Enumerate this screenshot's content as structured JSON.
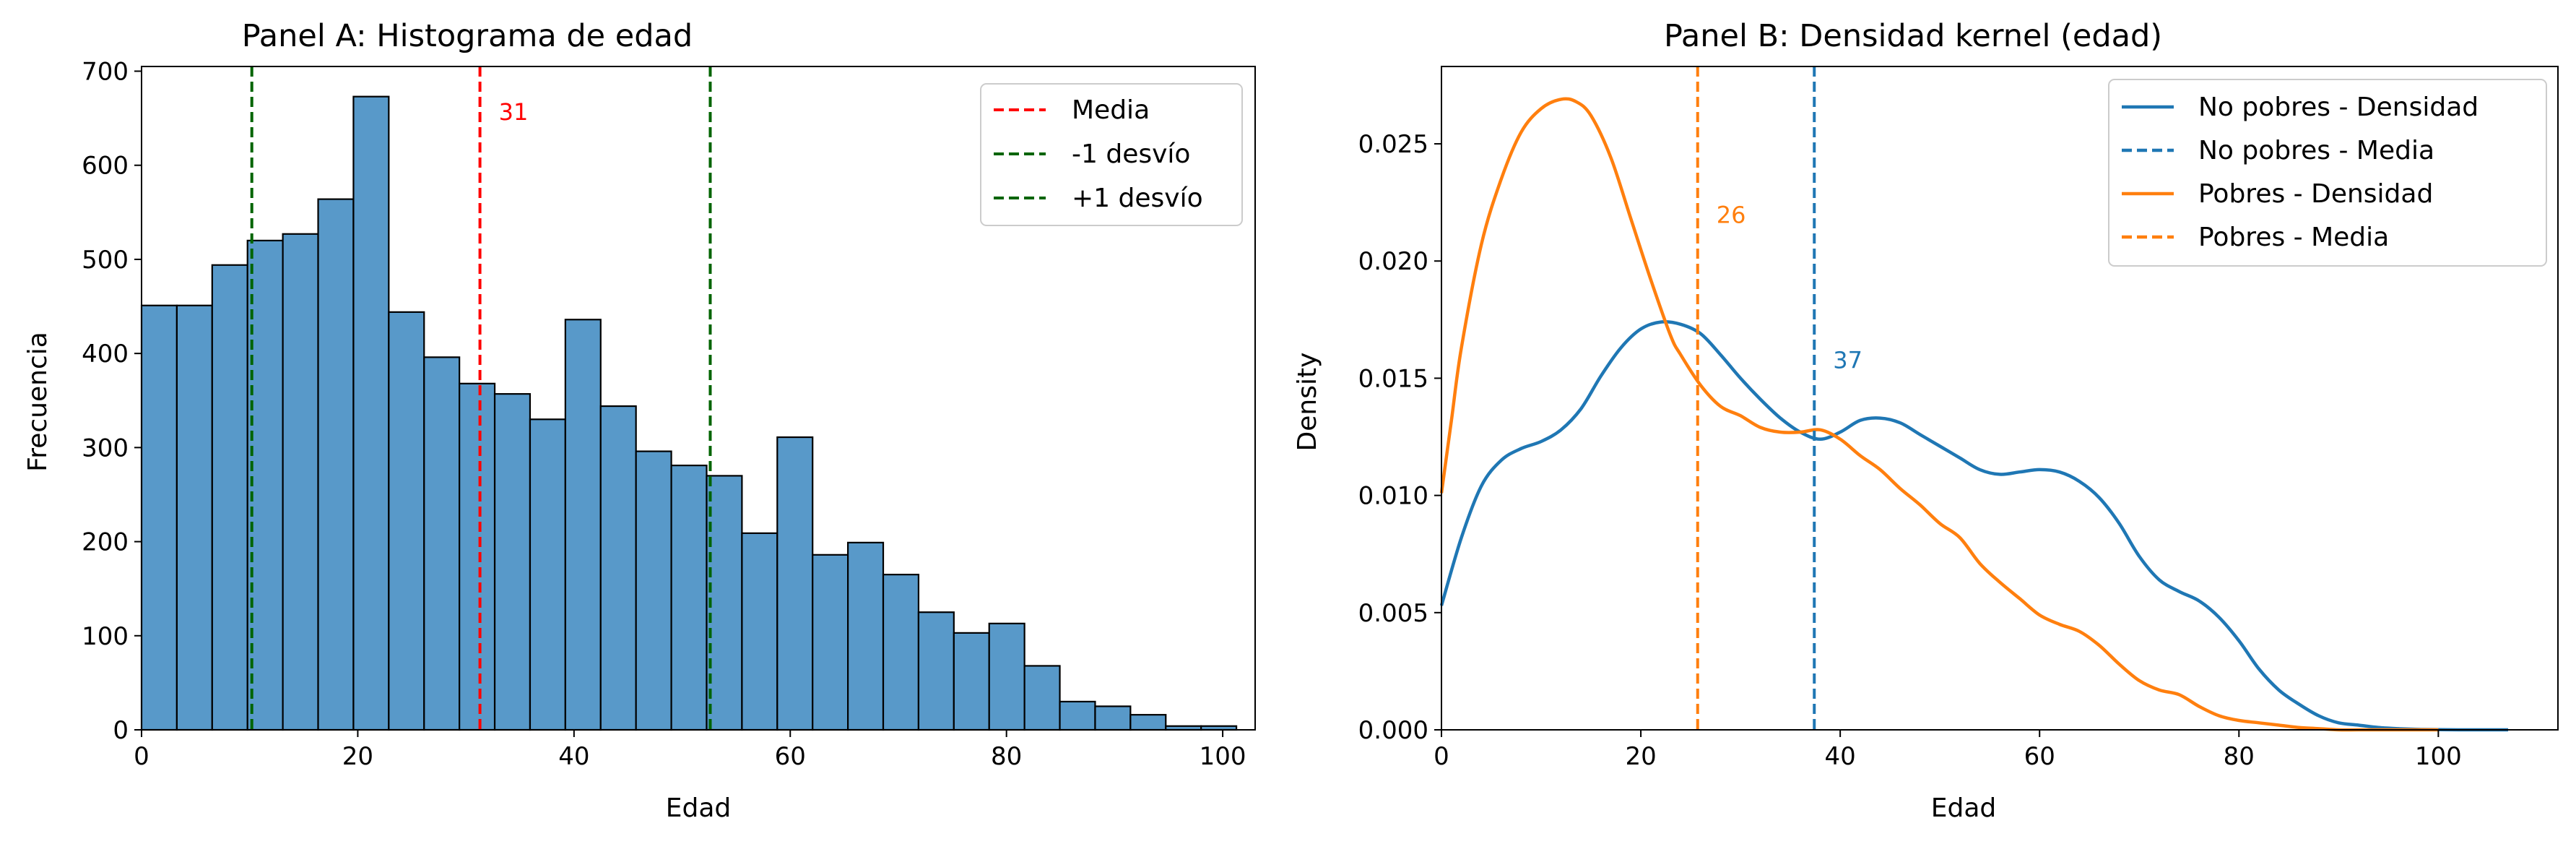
{
  "chart_data": [
    {
      "type": "bar",
      "title": "Panel A: Histograma de edad",
      "xlabel": "Edad",
      "ylabel": "Frecuencia",
      "xlim": [
        0,
        103
      ],
      "ylim": [
        0,
        705
      ],
      "xticks": [
        0,
        20,
        40,
        60,
        80,
        100
      ],
      "yticks": [
        0,
        100,
        200,
        300,
        400,
        500,
        600,
        700
      ],
      "bin_width": 3.2667,
      "bins_start": 0,
      "values": [
        451,
        451,
        494,
        520,
        527,
        564,
        673,
        444,
        396,
        368,
        357,
        330,
        436,
        344,
        296,
        281,
        270,
        209,
        311,
        186,
        199,
        165,
        125,
        103,
        113,
        68,
        30,
        25,
        16,
        4,
        4
      ],
      "bar_color": "#5899c9",
      "reference_lines": [
        {
          "name": "Media",
          "value": 31.3,
          "color": "#ff0000",
          "annotation": "31"
        },
        {
          "name": "-1 desvío",
          "value": 10.2,
          "color": "#006400"
        },
        {
          "name": "+1 desvío",
          "value": 52.6,
          "color": "#006400"
        }
      ],
      "legend": {
        "position": "top-right",
        "entries": [
          "Media",
          "-1 desvío",
          "+1 desvío"
        ]
      }
    },
    {
      "type": "line",
      "title": "Panel B: Densidad kernel (edad)",
      "xlabel": "Edad",
      "ylabel": "Density",
      "xlim": [
        0,
        112
      ],
      "ylim": [
        0,
        0.0283
      ],
      "xticks": [
        0,
        20,
        40,
        60,
        80,
        100
      ],
      "yticks": [
        "0.000",
        "0.005",
        "0.010",
        "0.015",
        "0.020",
        "0.025"
      ],
      "series": [
        {
          "name": "No pobres - Densidad",
          "color": "#1f77b4",
          "x": [
            0,
            2,
            4,
            6,
            8,
            10,
            12,
            14,
            16,
            18,
            20,
            22,
            24,
            26,
            28,
            30,
            32,
            34,
            36,
            38,
            40,
            42,
            44,
            46,
            48,
            50,
            52,
            54,
            56,
            58,
            60,
            62,
            64,
            66,
            68,
            70,
            72,
            74,
            76,
            78,
            80,
            82,
            84,
            86,
            88,
            90,
            92,
            94,
            96,
            98,
            100,
            102,
            104,
            107
          ],
          "y": [
            0.0053,
            0.0082,
            0.0104,
            0.0115,
            0.012,
            0.0123,
            0.0128,
            0.0137,
            0.0151,
            0.0163,
            0.0171,
            0.0174,
            0.0173,
            0.0169,
            0.016,
            0.015,
            0.0141,
            0.0133,
            0.0127,
            0.0124,
            0.0127,
            0.0132,
            0.0133,
            0.0131,
            0.0126,
            0.0121,
            0.0116,
            0.0111,
            0.0109,
            0.011,
            0.0111,
            0.011,
            0.0106,
            0.0099,
            0.0088,
            0.0074,
            0.0064,
            0.0059,
            0.0055,
            0.0048,
            0.0038,
            0.0026,
            0.0017,
            0.0011,
            0.0006,
            0.0003,
            0.0002,
            0.0001,
            5e-05,
            2e-05,
            1e-05,
            0.0,
            0.0,
            0.0
          ]
        },
        {
          "name": "Pobres - Densidad",
          "color": "#ff7f0e",
          "x": [
            0,
            1,
            2,
            4,
            6,
            8,
            10,
            12,
            13.5,
            15,
            17,
            19,
            21,
            23,
            24,
            26,
            28,
            30,
            32,
            34,
            36,
            38,
            40,
            42,
            44,
            46,
            48,
            50,
            52,
            54,
            56,
            58,
            60,
            62,
            64,
            66,
            68,
            70,
            72,
            74,
            76,
            78,
            80,
            82,
            84,
            86,
            88,
            90,
            92,
            95,
            100
          ],
          "y": [
            0.0101,
            0.0132,
            0.0163,
            0.0207,
            0.0235,
            0.0255,
            0.0265,
            0.0269,
            0.0268,
            0.0262,
            0.0244,
            0.0218,
            0.0192,
            0.0168,
            0.016,
            0.0147,
            0.0138,
            0.0134,
            0.0129,
            0.0127,
            0.0127,
            0.0128,
            0.0124,
            0.0117,
            0.0111,
            0.0103,
            0.0096,
            0.0088,
            0.0082,
            0.0071,
            0.0063,
            0.0056,
            0.0049,
            0.0045,
            0.0042,
            0.0036,
            0.0028,
            0.0021,
            0.0017,
            0.0015,
            0.001,
            0.0006,
            0.0004,
            0.0003,
            0.0002,
            0.0001,
            5e-05,
            0.0,
            0.0,
            0.0,
            0.0
          ]
        }
      ],
      "reference_lines": [
        {
          "name": "No pobres - Media",
          "value": 37.4,
          "color": "#1f77b4",
          "annotation": "37",
          "annotation_y": 0.0158
        },
        {
          "name": "Pobres - Media",
          "value": 25.7,
          "color": "#ff7f0e",
          "annotation": "26",
          "annotation_y": 0.022
        }
      ],
      "legend": {
        "position": "top-right",
        "entries": [
          {
            "label": "No pobres - Densidad",
            "color": "#1f77b4",
            "style": "solid"
          },
          {
            "label": "No pobres - Media",
            "color": "#1f77b4",
            "style": "dashed"
          },
          {
            "label": "Pobres - Densidad",
            "color": "#ff7f0e",
            "style": "solid"
          },
          {
            "label": "Pobres - Media",
            "color": "#ff7f0e",
            "style": "dashed"
          }
        ]
      }
    }
  ]
}
